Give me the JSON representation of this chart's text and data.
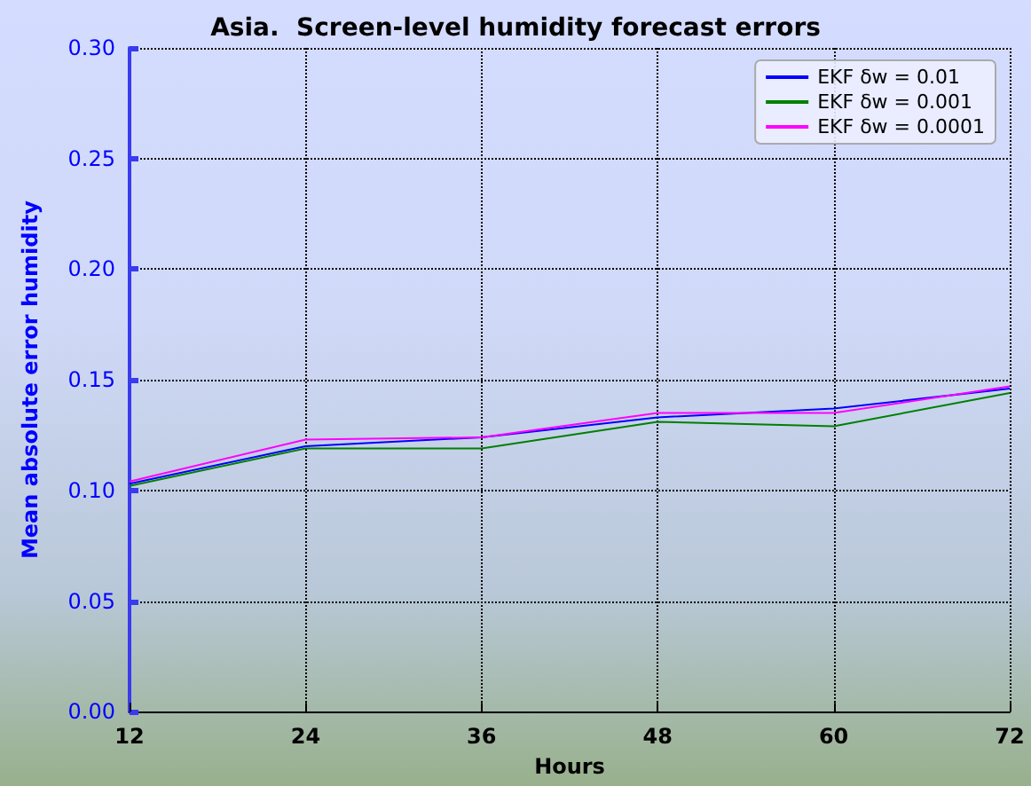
{
  "chart_data": {
    "type": "line",
    "title": "Asia.  Screen-level humidity forecast errors",
    "xlabel": "Hours",
    "ylabel": "Mean absolute error humidity",
    "x": [
      12,
      24,
      36,
      48,
      60,
      72
    ],
    "series": [
      {
        "name": "EKF δw = 0.01",
        "color": "#0000ff",
        "values": [
          0.103,
          0.12,
          0.124,
          0.133,
          0.137,
          0.146
        ]
      },
      {
        "name": "EKF δw = 0.001",
        "color": "#008000",
        "values": [
          0.102,
          0.119,
          0.119,
          0.131,
          0.129,
          0.144
        ]
      },
      {
        "name": "EKF δw = 0.0001",
        "color": "#ff00ff",
        "values": [
          0.104,
          0.123,
          0.124,
          0.135,
          0.135,
          0.147
        ]
      }
    ],
    "xlim": [
      12,
      72
    ],
    "xticks": [
      12,
      24,
      36,
      48,
      60,
      72
    ],
    "ylim": [
      0,
      0.3
    ],
    "yticks": [
      {
        "value": 0,
        "label": "0.00"
      },
      {
        "value": 0.05,
        "label": "0.05"
      },
      {
        "value": 0.1,
        "label": "0.10"
      },
      {
        "value": 0.15,
        "label": "0.15"
      },
      {
        "value": 0.2,
        "label": "0.20"
      },
      {
        "value": 0.25,
        "label": "0.25"
      },
      {
        "value": 0.3,
        "label": "0.30"
      }
    ],
    "grid": true,
    "legend": "top right",
    "marker": "none",
    "line_style": "solid"
  }
}
